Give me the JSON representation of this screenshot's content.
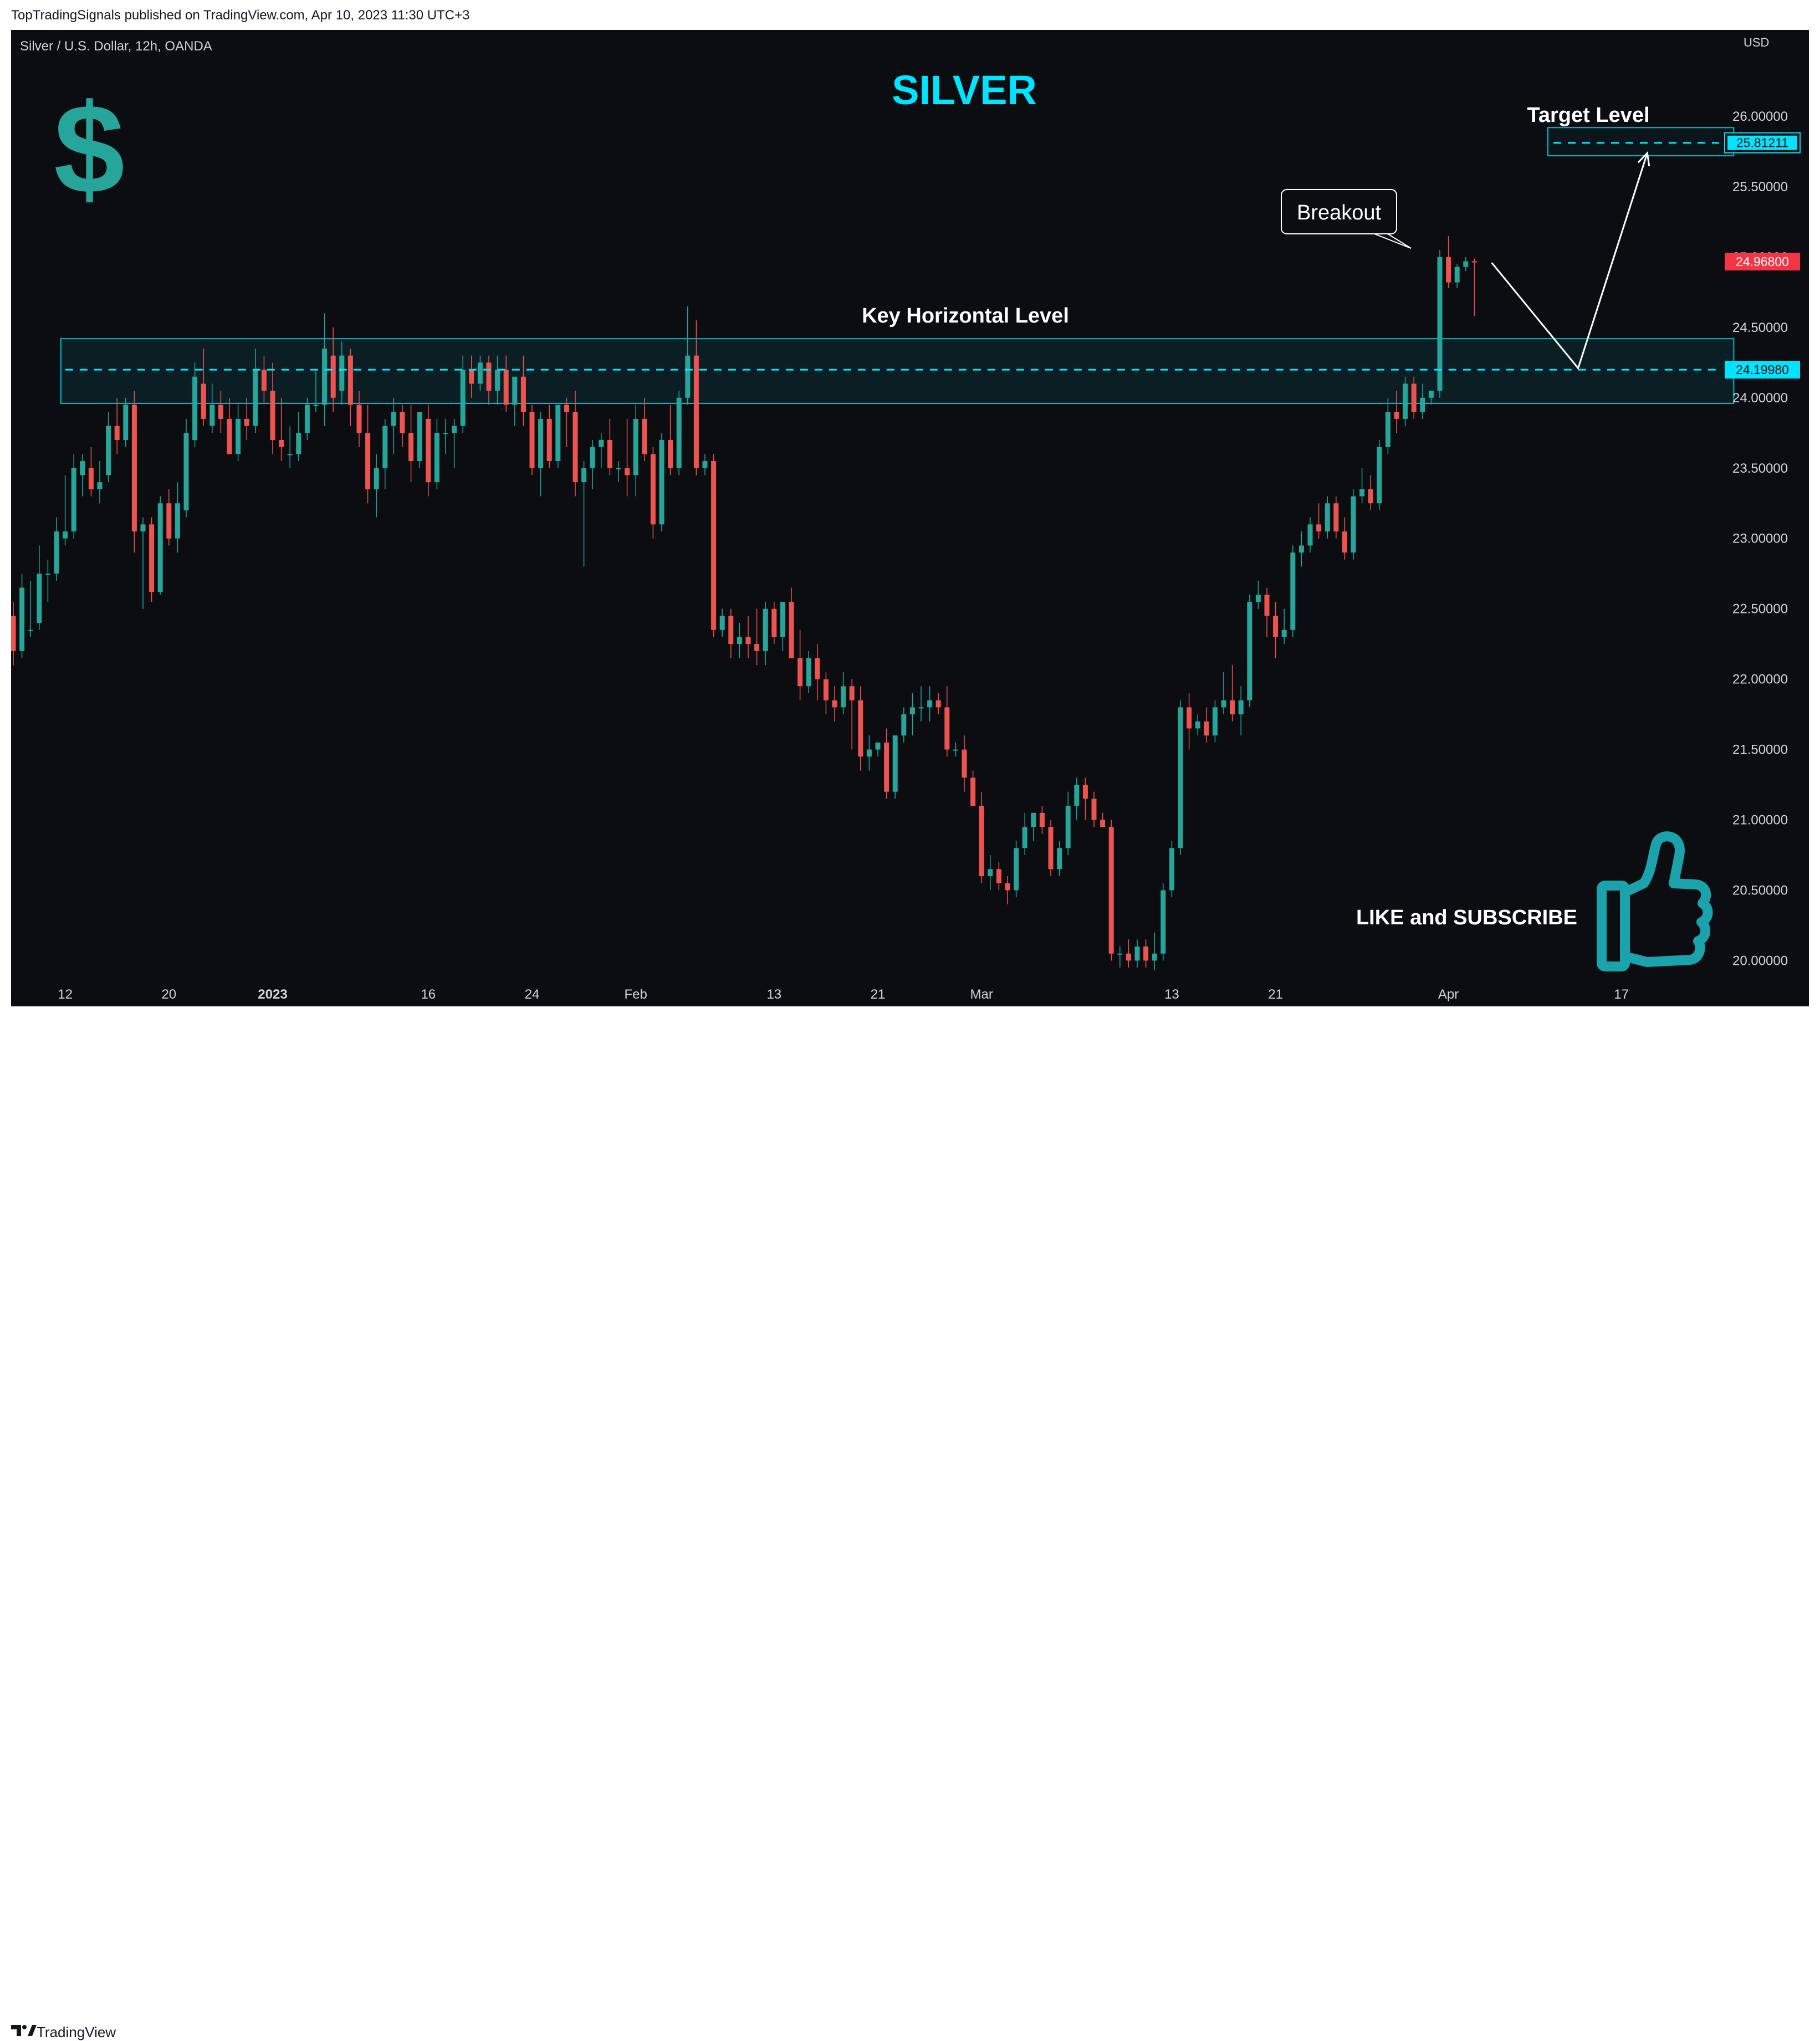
{
  "header": {
    "published": "TopTradingSignals published on TradingView.com, Apr 10, 2023 11:30 UTC+3"
  },
  "chart_info": {
    "symbol": "Silver / U.S. Dollar, 12h, OANDA",
    "currency": "USD"
  },
  "annotations": {
    "title": "SILVER",
    "key_level": "Key Horizontal Level",
    "target_level": "Target Level",
    "breakout": "Breakout",
    "cta": "LIKE and SUBSCRIBE"
  },
  "footer": {
    "brand": "TradingView"
  },
  "colors": {
    "up": "#26a69a",
    "down": "#ef5350",
    "accent": "#00e5ff",
    "background": "#0c0d10"
  },
  "icons": [
    "dollar-icon",
    "thumbs-up-icon",
    "tradingview-logo-icon"
  ],
  "chart_data": {
    "type": "candlestick",
    "timeframe": "12h",
    "ylim": [
      19.9,
      26.6
    ],
    "y_ticks": [
      "26.00000",
      "25.50000",
      "25.00000",
      "24.50000",
      "24.00000",
      "23.50000",
      "23.00000",
      "22.50000",
      "22.00000",
      "21.50000",
      "21.00000",
      "20.50000",
      "20.00000"
    ],
    "x_ticks": [
      {
        "label": "12",
        "bold": false,
        "i": 6
      },
      {
        "label": "20",
        "bold": false,
        "i": 18
      },
      {
        "label": "2023",
        "bold": true,
        "i": 30
      },
      {
        "label": "16",
        "bold": false,
        "i": 48
      },
      {
        "label": "24",
        "bold": false,
        "i": 60
      },
      {
        "label": "Feb",
        "bold": false,
        "i": 72
      },
      {
        "label": "13",
        "bold": false,
        "i": 88
      },
      {
        "label": "21",
        "bold": false,
        "i": 100
      },
      {
        "label": "Mar",
        "bold": false,
        "i": 112
      },
      {
        "label": "13",
        "bold": false,
        "i": 134
      },
      {
        "label": "21",
        "bold": false,
        "i": 146
      },
      {
        "label": "Apr",
        "bold": false,
        "i": 166
      },
      {
        "label": "17",
        "bold": false,
        "i": 186
      }
    ],
    "price_labels": [
      {
        "value": 25.81211,
        "text": "25.81211",
        "kind": "target"
      },
      {
        "value": 24.968,
        "text": "24.96800",
        "kind": "last"
      },
      {
        "value": 24.1998,
        "text": "24.19980",
        "kind": "level"
      }
    ],
    "zones": [
      {
        "name": "key_zone",
        "y0": 23.96,
        "y1": 24.42,
        "i0": 5.5,
        "i1": 199
      },
      {
        "name": "target_zone",
        "y0": 25.72,
        "y1": 25.92,
        "i0": 177.5,
        "i1": 199
      }
    ],
    "lines": {
      "key_level": 24.1998,
      "target_level": 25.81211
    },
    "projection": [
      {
        "i": 171,
        "y": 24.96
      },
      {
        "i": 181,
        "y": 24.21
      },
      {
        "i": 189,
        "y": 25.74
      }
    ],
    "candles": [
      {
        "o": 22.45,
        "h": 22.55,
        "l": 22.1,
        "c": 22.2
      },
      {
        "o": 22.2,
        "h": 22.75,
        "l": 22.15,
        "c": 22.65
      },
      {
        "o": 22.35,
        "h": 22.7,
        "l": 22.3,
        "c": 22.35
      },
      {
        "o": 22.4,
        "h": 22.95,
        "l": 22.35,
        "c": 22.75
      },
      {
        "o": 22.75,
        "h": 22.85,
        "l": 22.55,
        "c": 22.75
      },
      {
        "o": 22.75,
        "h": 23.15,
        "l": 22.7,
        "c": 23.05
      },
      {
        "o": 23.0,
        "h": 23.45,
        "l": 22.95,
        "c": 23.05
      },
      {
        "o": 23.05,
        "h": 23.6,
        "l": 23.0,
        "c": 23.5
      },
      {
        "o": 23.45,
        "h": 23.6,
        "l": 23.3,
        "c": 23.55
      },
      {
        "o": 23.5,
        "h": 23.65,
        "l": 23.3,
        "c": 23.35
      },
      {
        "o": 23.35,
        "h": 23.55,
        "l": 23.25,
        "c": 23.4
      },
      {
        "o": 23.45,
        "h": 23.9,
        "l": 23.4,
        "c": 23.8
      },
      {
        "o": 23.8,
        "h": 24.0,
        "l": 23.6,
        "c": 23.7
      },
      {
        "o": 23.7,
        "h": 24.0,
        "l": 23.65,
        "c": 23.95
      },
      {
        "o": 23.95,
        "h": 24.05,
        "l": 22.9,
        "c": 23.05
      },
      {
        "o": 23.05,
        "h": 23.15,
        "l": 22.5,
        "c": 23.1
      },
      {
        "o": 23.1,
        "h": 23.15,
        "l": 22.55,
        "c": 22.62
      },
      {
        "o": 22.62,
        "h": 23.3,
        "l": 22.6,
        "c": 23.25
      },
      {
        "o": 23.25,
        "h": 23.35,
        "l": 22.95,
        "c": 23.0
      },
      {
        "o": 23.0,
        "h": 23.4,
        "l": 22.9,
        "c": 23.25
      },
      {
        "o": 23.2,
        "h": 23.85,
        "l": 23.15,
        "c": 23.75
      },
      {
        "o": 23.7,
        "h": 24.25,
        "l": 23.65,
        "c": 24.15
      },
      {
        "o": 24.1,
        "h": 24.35,
        "l": 23.8,
        "c": 23.85
      },
      {
        "o": 23.8,
        "h": 24.1,
        "l": 23.75,
        "c": 23.95
      },
      {
        "o": 23.95,
        "h": 24.05,
        "l": 23.75,
        "c": 23.85
      },
      {
        "o": 23.85,
        "h": 24.0,
        "l": 23.6,
        "c": 23.6
      },
      {
        "o": 23.6,
        "h": 23.95,
        "l": 23.55,
        "c": 23.85
      },
      {
        "o": 23.85,
        "h": 24.0,
        "l": 23.7,
        "c": 23.8
      },
      {
        "o": 23.8,
        "h": 24.35,
        "l": 23.75,
        "c": 24.2
      },
      {
        "o": 24.2,
        "h": 24.3,
        "l": 23.95,
        "c": 24.05
      },
      {
        "o": 24.05,
        "h": 24.25,
        "l": 23.6,
        "c": 23.7
      },
      {
        "o": 23.7,
        "h": 24.0,
        "l": 23.55,
        "c": 23.65
      },
      {
        "o": 23.6,
        "h": 23.8,
        "l": 23.5,
        "c": 23.6
      },
      {
        "o": 23.6,
        "h": 23.9,
        "l": 23.55,
        "c": 23.75
      },
      {
        "o": 23.75,
        "h": 24.0,
        "l": 23.7,
        "c": 23.95
      },
      {
        "o": 23.95,
        "h": 24.2,
        "l": 23.9,
        "c": 23.95
      },
      {
        "o": 23.95,
        "h": 24.6,
        "l": 23.8,
        "c": 24.35
      },
      {
        "o": 24.3,
        "h": 24.5,
        "l": 23.9,
        "c": 24.0
      },
      {
        "o": 24.05,
        "h": 24.4,
        "l": 23.95,
        "c": 24.3
      },
      {
        "o": 24.3,
        "h": 24.35,
        "l": 23.8,
        "c": 23.95
      },
      {
        "o": 23.95,
        "h": 24.05,
        "l": 23.65,
        "c": 23.75
      },
      {
        "o": 23.75,
        "h": 23.95,
        "l": 23.25,
        "c": 23.35
      },
      {
        "o": 23.35,
        "h": 23.6,
        "l": 23.15,
        "c": 23.5
      },
      {
        "o": 23.5,
        "h": 23.85,
        "l": 23.35,
        "c": 23.8
      },
      {
        "o": 23.8,
        "h": 24.0,
        "l": 23.6,
        "c": 23.9
      },
      {
        "o": 23.9,
        "h": 23.95,
        "l": 23.65,
        "c": 23.75
      },
      {
        "o": 23.75,
        "h": 23.95,
        "l": 23.4,
        "c": 23.55
      },
      {
        "o": 23.55,
        "h": 23.9,
        "l": 23.5,
        "c": 23.9
      },
      {
        "o": 23.85,
        "h": 23.95,
        "l": 23.3,
        "c": 23.4
      },
      {
        "o": 23.4,
        "h": 23.85,
        "l": 23.35,
        "c": 23.75
      },
      {
        "o": 23.75,
        "h": 23.85,
        "l": 23.6,
        "c": 23.75
      },
      {
        "o": 23.75,
        "h": 23.85,
        "l": 23.5,
        "c": 23.8
      },
      {
        "o": 23.8,
        "h": 24.3,
        "l": 23.75,
        "c": 24.2
      },
      {
        "o": 24.2,
        "h": 24.3,
        "l": 24.0,
        "c": 24.1
      },
      {
        "o": 24.1,
        "h": 24.3,
        "l": 24.05,
        "c": 24.25
      },
      {
        "o": 24.25,
        "h": 24.3,
        "l": 23.95,
        "c": 24.05
      },
      {
        "o": 24.05,
        "h": 24.3,
        "l": 23.95,
        "c": 24.2
      },
      {
        "o": 24.2,
        "h": 24.3,
        "l": 23.9,
        "c": 23.95
      },
      {
        "o": 23.95,
        "h": 24.1,
        "l": 23.8,
        "c": 24.15
      },
      {
        "o": 24.15,
        "h": 24.3,
        "l": 23.8,
        "c": 23.9
      },
      {
        "o": 23.9,
        "h": 23.95,
        "l": 23.45,
        "c": 23.5
      },
      {
        "o": 23.5,
        "h": 23.9,
        "l": 23.3,
        "c": 23.85
      },
      {
        "o": 23.85,
        "h": 23.95,
        "l": 23.5,
        "c": 23.55
      },
      {
        "o": 23.55,
        "h": 23.9,
        "l": 23.5,
        "c": 23.95
      },
      {
        "o": 23.95,
        "h": 24.0,
        "l": 23.65,
        "c": 23.9
      },
      {
        "o": 23.9,
        "h": 24.05,
        "l": 23.3,
        "c": 23.4
      },
      {
        "o": 23.4,
        "h": 23.55,
        "l": 22.8,
        "c": 23.5
      },
      {
        "o": 23.5,
        "h": 23.7,
        "l": 23.35,
        "c": 23.65
      },
      {
        "o": 23.65,
        "h": 23.75,
        "l": 23.5,
        "c": 23.7
      },
      {
        "o": 23.7,
        "h": 23.85,
        "l": 23.45,
        "c": 23.5
      },
      {
        "o": 23.5,
        "h": 23.55,
        "l": 23.4,
        "c": 23.5
      },
      {
        "o": 23.5,
        "h": 23.85,
        "l": 23.3,
        "c": 23.45
      },
      {
        "o": 23.45,
        "h": 23.95,
        "l": 23.3,
        "c": 23.85
      },
      {
        "o": 23.85,
        "h": 24.0,
        "l": 23.55,
        "c": 23.6
      },
      {
        "o": 23.6,
        "h": 23.65,
        "l": 23.0,
        "c": 23.1
      },
      {
        "o": 23.1,
        "h": 23.75,
        "l": 23.05,
        "c": 23.7
      },
      {
        "o": 23.7,
        "h": 23.95,
        "l": 23.45,
        "c": 23.5
      },
      {
        "o": 23.5,
        "h": 24.05,
        "l": 23.45,
        "c": 24.0
      },
      {
        "o": 24.0,
        "h": 24.65,
        "l": 23.95,
        "c": 24.3
      },
      {
        "o": 24.3,
        "h": 24.55,
        "l": 23.45,
        "c": 23.5
      },
      {
        "o": 23.5,
        "h": 23.6,
        "l": 23.45,
        "c": 23.55
      },
      {
        "o": 23.55,
        "h": 23.6,
        "l": 22.3,
        "c": 22.35
      },
      {
        "o": 22.35,
        "h": 22.5,
        "l": 22.3,
        "c": 22.45
      },
      {
        "o": 22.45,
        "h": 22.5,
        "l": 22.15,
        "c": 22.25
      },
      {
        "o": 22.25,
        "h": 22.4,
        "l": 22.15,
        "c": 22.3
      },
      {
        "o": 22.3,
        "h": 22.45,
        "l": 22.15,
        "c": 22.25
      },
      {
        "o": 22.25,
        "h": 22.5,
        "l": 22.1,
        "c": 22.2
      },
      {
        "o": 22.2,
        "h": 22.55,
        "l": 22.1,
        "c": 22.5
      },
      {
        "o": 22.5,
        "h": 22.55,
        "l": 22.25,
        "c": 22.3
      },
      {
        "o": 22.3,
        "h": 22.55,
        "l": 22.2,
        "c": 22.55
      },
      {
        "o": 22.55,
        "h": 22.65,
        "l": 22.15,
        "c": 22.15
      },
      {
        "o": 22.15,
        "h": 22.35,
        "l": 21.85,
        "c": 21.95
      },
      {
        "o": 21.95,
        "h": 22.2,
        "l": 21.9,
        "c": 22.15
      },
      {
        "o": 22.15,
        "h": 22.25,
        "l": 21.85,
        "c": 22.0
      },
      {
        "o": 22.0,
        "h": 22.05,
        "l": 21.75,
        "c": 21.85
      },
      {
        "o": 21.85,
        "h": 21.95,
        "l": 21.7,
        "c": 21.8
      },
      {
        "o": 21.8,
        "h": 22.05,
        "l": 21.75,
        "c": 21.95
      },
      {
        "o": 21.95,
        "h": 22.0,
        "l": 21.5,
        "c": 21.85
      },
      {
        "o": 21.85,
        "h": 21.95,
        "l": 21.35,
        "c": 21.45
      },
      {
        "o": 21.45,
        "h": 21.6,
        "l": 21.35,
        "c": 21.5
      },
      {
        "o": 21.5,
        "h": 21.55,
        "l": 21.45,
        "c": 21.55
      },
      {
        "o": 21.55,
        "h": 21.65,
        "l": 21.15,
        "c": 21.2
      },
      {
        "o": 21.2,
        "h": 21.6,
        "l": 21.15,
        "c": 21.6
      },
      {
        "o": 21.6,
        "h": 21.8,
        "l": 21.55,
        "c": 21.75
      },
      {
        "o": 21.75,
        "h": 21.9,
        "l": 21.6,
        "c": 21.8
      },
      {
        "o": 21.8,
        "h": 21.95,
        "l": 21.7,
        "c": 21.8
      },
      {
        "o": 21.8,
        "h": 21.95,
        "l": 21.7,
        "c": 21.85
      },
      {
        "o": 21.85,
        "h": 21.9,
        "l": 21.75,
        "c": 21.8
      },
      {
        "o": 21.8,
        "h": 21.95,
        "l": 21.45,
        "c": 21.5
      },
      {
        "o": 21.5,
        "h": 21.55,
        "l": 21.45,
        "c": 21.5
      },
      {
        "o": 21.5,
        "h": 21.6,
        "l": 21.2,
        "c": 21.3
      },
      {
        "o": 21.3,
        "h": 21.35,
        "l": 21.1,
        "c": 21.1
      },
      {
        "o": 21.1,
        "h": 21.2,
        "l": 20.55,
        "c": 20.6
      },
      {
        "o": 20.6,
        "h": 20.75,
        "l": 20.5,
        "c": 20.65
      },
      {
        "o": 20.65,
        "h": 20.7,
        "l": 20.5,
        "c": 20.55
      },
      {
        "o": 20.55,
        "h": 20.6,
        "l": 20.4,
        "c": 20.5
      },
      {
        "o": 20.5,
        "h": 20.85,
        "l": 20.45,
        "c": 20.8
      },
      {
        "o": 20.8,
        "h": 21.05,
        "l": 20.75,
        "c": 20.95
      },
      {
        "o": 20.95,
        "h": 21.05,
        "l": 20.85,
        "c": 21.05
      },
      {
        "o": 21.05,
        "h": 21.1,
        "l": 20.9,
        "c": 20.95
      },
      {
        "o": 20.95,
        "h": 21.0,
        "l": 20.6,
        "c": 20.65
      },
      {
        "o": 20.65,
        "h": 20.85,
        "l": 20.6,
        "c": 20.8
      },
      {
        "o": 20.8,
        "h": 21.2,
        "l": 20.75,
        "c": 21.1
      },
      {
        "o": 21.1,
        "h": 21.3,
        "l": 21.0,
        "c": 21.25
      },
      {
        "o": 21.25,
        "h": 21.3,
        "l": 21.0,
        "c": 21.15
      },
      {
        "o": 21.15,
        "h": 21.2,
        "l": 20.95,
        "c": 21.0
      },
      {
        "o": 21.0,
        "h": 21.05,
        "l": 20.95,
        "c": 20.95
      },
      {
        "o": 20.95,
        "h": 21.0,
        "l": 20.0,
        "c": 20.05
      },
      {
        "o": 20.05,
        "h": 20.1,
        "l": 19.95,
        "c": 20.05
      },
      {
        "o": 20.05,
        "h": 20.15,
        "l": 19.95,
        "c": 20.0
      },
      {
        "o": 20.0,
        "h": 20.15,
        "l": 19.95,
        "c": 20.1
      },
      {
        "o": 20.1,
        "h": 20.15,
        "l": 19.95,
        "c": 20.0
      },
      {
        "o": 20.0,
        "h": 20.2,
        "l": 19.93,
        "c": 20.05
      },
      {
        "o": 20.05,
        "h": 20.55,
        "l": 20.0,
        "c": 20.5
      },
      {
        "o": 20.5,
        "h": 20.85,
        "l": 20.45,
        "c": 20.8
      },
      {
        "o": 20.8,
        "h": 21.85,
        "l": 20.75,
        "c": 21.8
      },
      {
        "o": 21.8,
        "h": 21.9,
        "l": 21.5,
        "c": 21.65
      },
      {
        "o": 21.65,
        "h": 21.75,
        "l": 21.6,
        "c": 21.7
      },
      {
        "o": 21.7,
        "h": 21.8,
        "l": 21.55,
        "c": 21.6
      },
      {
        "o": 21.6,
        "h": 21.85,
        "l": 21.55,
        "c": 21.8
      },
      {
        "o": 21.8,
        "h": 22.05,
        "l": 21.75,
        "c": 21.85
      },
      {
        "o": 21.85,
        "h": 22.1,
        "l": 21.7,
        "c": 21.75
      },
      {
        "o": 21.75,
        "h": 21.95,
        "l": 21.6,
        "c": 21.85
      },
      {
        "o": 21.85,
        "h": 22.6,
        "l": 21.8,
        "c": 22.55
      },
      {
        "o": 22.55,
        "h": 22.7,
        "l": 22.5,
        "c": 22.6
      },
      {
        "o": 22.6,
        "h": 22.65,
        "l": 22.3,
        "c": 22.45
      },
      {
        "o": 22.45,
        "h": 22.55,
        "l": 22.15,
        "c": 22.3
      },
      {
        "o": 22.3,
        "h": 22.5,
        "l": 22.25,
        "c": 22.35
      },
      {
        "o": 22.35,
        "h": 22.95,
        "l": 22.3,
        "c": 22.9
      },
      {
        "o": 22.9,
        "h": 23.05,
        "l": 22.8,
        "c": 22.95
      },
      {
        "o": 22.95,
        "h": 23.15,
        "l": 22.9,
        "c": 23.1
      },
      {
        "o": 23.1,
        "h": 23.25,
        "l": 23.0,
        "c": 23.05
      },
      {
        "o": 23.05,
        "h": 23.3,
        "l": 23.0,
        "c": 23.25
      },
      {
        "o": 23.25,
        "h": 23.3,
        "l": 23.0,
        "c": 23.05
      },
      {
        "o": 23.05,
        "h": 23.15,
        "l": 22.85,
        "c": 22.9
      },
      {
        "o": 22.9,
        "h": 23.35,
        "l": 22.85,
        "c": 23.3
      },
      {
        "o": 23.3,
        "h": 23.5,
        "l": 23.25,
        "c": 23.35
      },
      {
        "o": 23.35,
        "h": 23.45,
        "l": 23.2,
        "c": 23.25
      },
      {
        "o": 23.25,
        "h": 23.7,
        "l": 23.2,
        "c": 23.65
      },
      {
        "o": 23.65,
        "h": 24.0,
        "l": 23.6,
        "c": 23.9
      },
      {
        "o": 23.9,
        "h": 24.05,
        "l": 23.75,
        "c": 23.85
      },
      {
        "o": 23.85,
        "h": 24.15,
        "l": 23.8,
        "c": 24.1
      },
      {
        "o": 24.1,
        "h": 24.15,
        "l": 23.85,
        "c": 23.9
      },
      {
        "o": 23.9,
        "h": 24.1,
        "l": 23.85,
        "c": 24.0
      },
      {
        "o": 24.0,
        "h": 24.05,
        "l": 23.95,
        "c": 24.05
      },
      {
        "o": 24.05,
        "h": 25.05,
        "l": 24.0,
        "c": 25.0
      },
      {
        "o": 25.0,
        "h": 25.15,
        "l": 24.78,
        "c": 24.82
      },
      {
        "o": 24.82,
        "h": 24.95,
        "l": 24.78,
        "c": 24.93
      },
      {
        "o": 24.93,
        "h": 25.0,
        "l": 24.9,
        "c": 24.97
      },
      {
        "o": 24.97,
        "h": 24.99,
        "l": 24.58,
        "c": 24.968
      }
    ]
  }
}
